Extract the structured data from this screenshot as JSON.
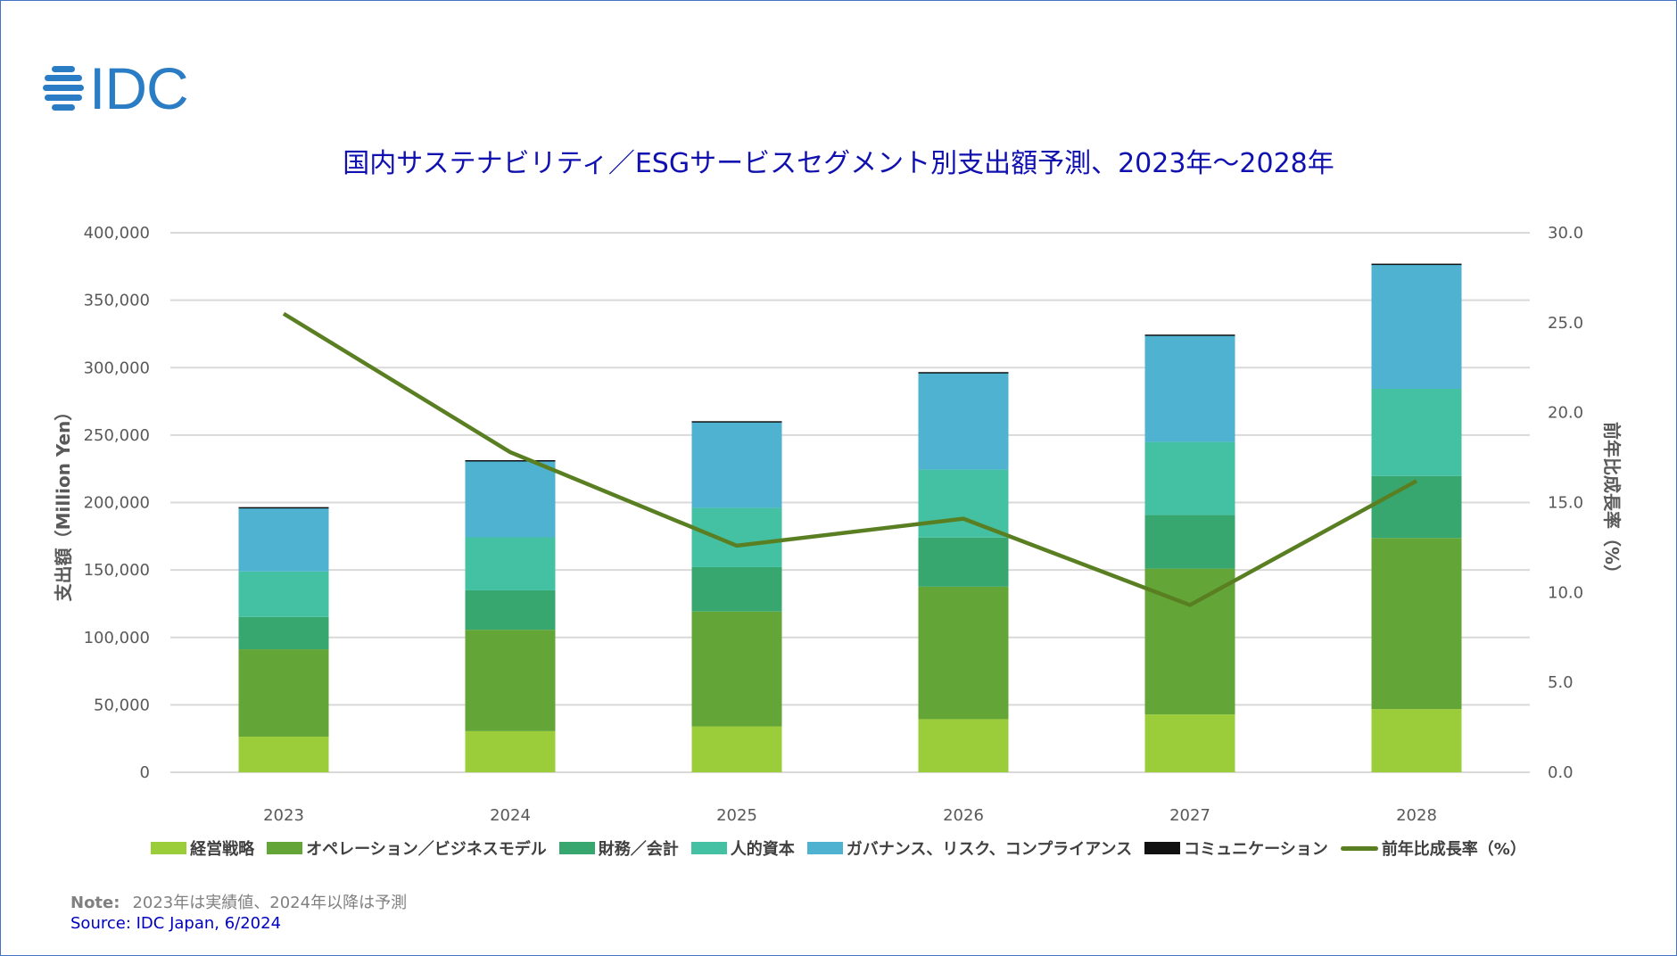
{
  "logo_text": "IDC",
  "title": "国内サステナビリティ／ESGサービスセグメント別支出額予測、2023年～2028年",
  "note_label": "Note:",
  "note_text": "2023年は実績値、2024年以降は予測",
  "source": "Source: IDC Japan, 6/2024",
  "chart_data": {
    "type": "bar",
    "stacked": true,
    "categories": [
      "2023",
      "2024",
      "2025",
      "2026",
      "2027",
      "2028"
    ],
    "series": [
      {
        "name": "経営戦略",
        "color": "#9ACD39",
        "values": [
          26400,
          30500,
          34000,
          39400,
          42900,
          46900
        ]
      },
      {
        "name": "オペレーション／ビジネスモデル",
        "color": "#63A537",
        "values": [
          64800,
          75200,
          85200,
          98200,
          108100,
          126800
        ]
      },
      {
        "name": "財務／会計",
        "color": "#37A76F",
        "values": [
          24000,
          29200,
          32900,
          36400,
          39700,
          45900
        ]
      },
      {
        "name": "人的資本",
        "color": "#44C1A3",
        "values": [
          33700,
          39300,
          44000,
          50400,
          54200,
          64700
        ]
      },
      {
        "name": "ガバナンス、リスク、コンプライアンス",
        "color": "#4EB2D0",
        "values": [
          46900,
          56700,
          63400,
          71800,
          79000,
          92200
        ]
      },
      {
        "name": "コミュニケーション",
        "color": "#111111",
        "values": [
          800,
          500,
          800,
          500,
          600,
          600
        ]
      }
    ],
    "line_series": {
      "name": "前年比成長率（%）",
      "color": "#5A7F22",
      "axis": "right",
      "values": [
        25.5,
        17.8,
        12.6,
        14.1,
        9.3,
        16.2
      ]
    },
    "ylabel": "支出額（Million Yen）",
    "y2label": "前年比成長率（%）",
    "ylim": [
      0,
      400000
    ],
    "y2lim": [
      0,
      30
    ],
    "yticks": [
      "0",
      "50,000",
      "100,000",
      "150,000",
      "200,000",
      "250,000",
      "300,000",
      "350,000",
      "400,000"
    ],
    "y2ticks": [
      "0.0",
      "5.0",
      "10.0",
      "15.0",
      "20.0",
      "25.0",
      "30.0"
    ],
    "grid": true,
    "legend": "bottom"
  }
}
